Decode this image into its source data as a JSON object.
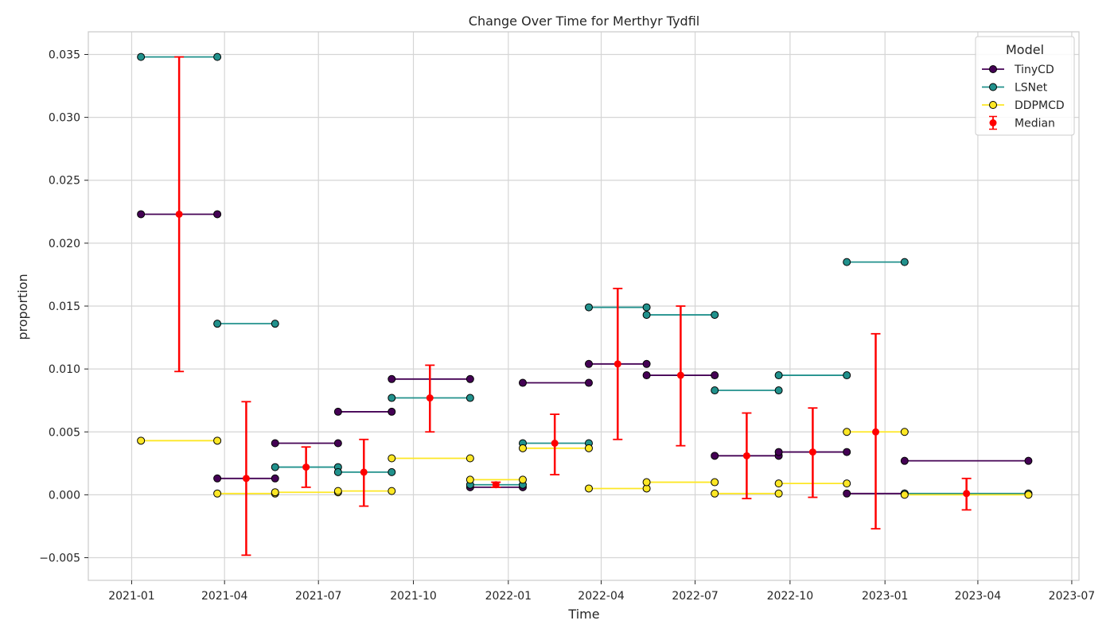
{
  "chart_data": {
    "type": "line",
    "title": "Change Over Time for Merthyr Tydfil",
    "xlabel": "Time",
    "ylabel": "proportion",
    "xlim": [
      "2020-11-20",
      "2023-07-08"
    ],
    "ylim": [
      -0.0068,
      0.0368
    ],
    "x_ticks": [
      "2021-01-01",
      "2021-04-01",
      "2021-07-01",
      "2021-10-01",
      "2022-01-01",
      "2022-04-01",
      "2022-07-01",
      "2022-10-01",
      "2023-01-01",
      "2023-04-01",
      "2023-07-01"
    ],
    "x_tick_labels": [
      "2021-01",
      "2021-04",
      "2021-07",
      "2021-10",
      "2022-01",
      "2022-04",
      "2022-07",
      "2022-10",
      "2023-01",
      "2023-04",
      "2023-07"
    ],
    "y_ticks": [
      -0.005,
      0.0,
      0.005,
      0.01,
      0.015,
      0.02,
      0.025,
      0.03,
      0.035
    ],
    "y_tick_labels": [
      "−0.005",
      "0.000",
      "0.005",
      "0.010",
      "0.015",
      "0.020",
      "0.025",
      "0.030",
      "0.035"
    ],
    "grid": true,
    "legend": {
      "title": "Model",
      "placement": "top-right",
      "entries": [
        "TinyCD",
        "LSNet",
        "DDPMCD",
        "Median"
      ]
    },
    "periods": [
      {
        "start": "2021-01-10",
        "end": "2021-03-25"
      },
      {
        "start": "2021-03-25",
        "end": "2021-05-20"
      },
      {
        "start": "2021-05-20",
        "end": "2021-07-20"
      },
      {
        "start": "2021-07-20",
        "end": "2021-09-10"
      },
      {
        "start": "2021-09-10",
        "end": "2021-11-25"
      },
      {
        "start": "2021-11-25",
        "end": "2022-01-15"
      },
      {
        "start": "2022-01-15",
        "end": "2022-03-20"
      },
      {
        "start": "2022-03-20",
        "end": "2022-05-15"
      },
      {
        "start": "2022-05-15",
        "end": "2022-07-20"
      },
      {
        "start": "2022-07-20",
        "end": "2022-09-20"
      },
      {
        "start": "2022-09-20",
        "end": "2022-11-25"
      },
      {
        "start": "2022-11-25",
        "end": "2023-01-20"
      },
      {
        "start": "2023-01-20",
        "end": "2023-05-20"
      }
    ],
    "series": [
      {
        "name": "TinyCD",
        "color": "#440154",
        "values": [
          0.0223,
          0.0013,
          0.0041,
          0.0066,
          0.0092,
          0.0006,
          0.0089,
          0.0104,
          0.0095,
          0.0031,
          0.0034,
          0.0001,
          0.0027
        ]
      },
      {
        "name": "LSNet",
        "color": "#21918c",
        "values": [
          0.0348,
          0.0136,
          0.0022,
          0.0018,
          0.0077,
          0.0008,
          0.0041,
          0.0149,
          0.0143,
          0.0083,
          0.0095,
          0.0185,
          0.0001
        ]
      },
      {
        "name": "DDPMCD",
        "color": "#fde725",
        "values": [
          0.0043,
          0.0001,
          0.0002,
          0.0003,
          0.0029,
          0.0012,
          0.0037,
          0.0005,
          0.001,
          0.0001,
          0.0009,
          0.005,
          0.0
        ]
      }
    ],
    "median": {
      "name": "Median",
      "color": "#ff0000",
      "points": [
        {
          "x": "2021-02-16",
          "y": 0.0223,
          "err_low": 0.0098,
          "err_high": 0.0348
        },
        {
          "x": "2021-04-22",
          "y": 0.0013,
          "err_low": -0.0048,
          "err_high": 0.0074
        },
        {
          "x": "2021-06-19",
          "y": 0.0022,
          "err_low": 0.0006,
          "err_high": 0.0038
        },
        {
          "x": "2021-08-14",
          "y": 0.0018,
          "err_low": -0.0009,
          "err_high": 0.0044
        },
        {
          "x": "2021-10-17",
          "y": 0.0077,
          "err_low": 0.005,
          "err_high": 0.0103
        },
        {
          "x": "2021-12-20",
          "y": 0.0008,
          "err_low": 0.0006,
          "err_high": 0.001
        },
        {
          "x": "2022-02-15",
          "y": 0.0041,
          "err_low": 0.0016,
          "err_high": 0.0064
        },
        {
          "x": "2022-04-17",
          "y": 0.0104,
          "err_low": 0.0044,
          "err_high": 0.0164
        },
        {
          "x": "2022-06-17",
          "y": 0.0095,
          "err_low": 0.0039,
          "err_high": 0.015
        },
        {
          "x": "2022-08-20",
          "y": 0.0031,
          "err_low": -0.0003,
          "err_high": 0.0065
        },
        {
          "x": "2022-10-23",
          "y": 0.0034,
          "err_low": -0.0002,
          "err_high": 0.0069
        },
        {
          "x": "2022-12-23",
          "y": 0.005,
          "err_low": -0.0027,
          "err_high": 0.0128
        },
        {
          "x": "2023-03-21",
          "y": 0.0001,
          "err_low": -0.0012,
          "err_high": 0.0013
        }
      ]
    }
  }
}
